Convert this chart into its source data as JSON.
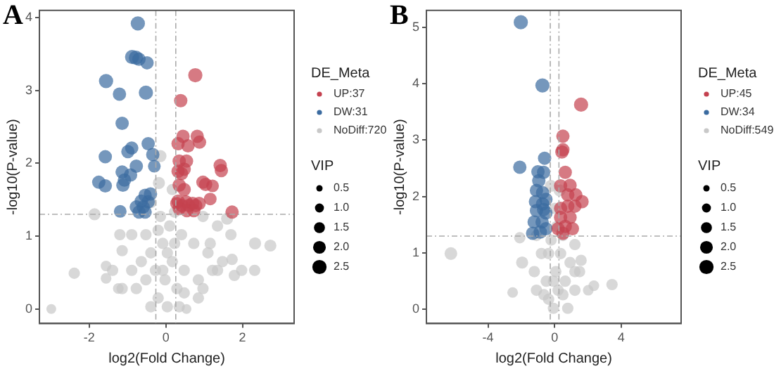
{
  "chart_data": [
    {
      "type": "bubble",
      "title": "A",
      "xlabel": "log2(Fold Change)",
      "ylabel": "-log10(P-value)",
      "legend_title": "DE_Meta",
      "annotations": [
        "VIP"
      ],
      "legend": "right",
      "grid": false,
      "size_legend": [
        0.5,
        {
          "value": 1,
          "label": "1.0"
        },
        1.5,
        {
          "value": 2,
          "label": "2.0"
        },
        2.5
      ],
      "xlim": [
        -3.3,
        3.35
      ],
      "ylim": [
        -0.2,
        4.1
      ],
      "xticks": [
        -2,
        0,
        2
      ],
      "yticks": [
        0,
        1,
        2,
        3,
        4
      ],
      "ref_lines": [
        {
          "axis": "x",
          "value": -0.26,
          "line_style": "dashed",
          "color": "#aaaaaa"
        },
        {
          "axis": "x",
          "value": 0.26,
          "line_style": "dashed",
          "color": "#aaaaaa"
        },
        {
          "axis": "y",
          "value": 1.3,
          "line_style": "dashed",
          "color": "#aaaaaa"
        }
      ],
      "series": [
        {
          "name": "UP:37",
          "color": "#c4414f",
          "x": [
            0.77,
            0.39,
            0.45,
            0.82,
            0.88,
            0.32,
            0.58,
            0.35,
            0.54,
            1.42,
            1.45,
            0.32,
            0.41,
            0.97,
            1.04,
            0.35,
            1.22,
            0.48,
            1.16,
            0.32,
            0.53,
            0.7,
            0.87,
            0.42,
            0.6,
            0.78,
            0.28,
            0.35,
            1.73,
            0.55,
            0.73,
            0.48
          ],
          "values": [
            3.21,
            2.86,
            2.37,
            2.37,
            2.29,
            2.27,
            2.24,
            2.03,
            2.03,
            1.97,
            1.9,
            1.89,
            1.86,
            1.74,
            1.71,
            1.7,
            1.69,
            1.64,
            1.51,
            1.48,
            1.47,
            1.45,
            1.45,
            1.42,
            1.42,
            1.42,
            1.45,
            1.38,
            1.33,
            1.35,
            1.35,
            1.92
          ],
          "sizes": [
            2.5,
            2.2,
            2.2,
            2.2,
            2.2,
            2.2,
            2.2,
            2.2,
            2.2,
            2.2,
            2.2,
            2.2,
            2.2,
            2.2,
            2.2,
            2.2,
            2.0,
            2.2,
            2.0,
            2.2,
            2.2,
            2.2,
            2.2,
            2.2,
            2.2,
            2.2,
            2.0,
            2.2,
            2.2,
            2.2,
            2.2,
            2.2
          ]
        },
        {
          "name": "DW:31",
          "color": "#3b6ba0",
          "x": [
            -0.73,
            -0.88,
            -0.78,
            -0.7,
            -0.49,
            -1.56,
            -1.21,
            -0.52,
            -1.14,
            -0.46,
            -0.89,
            -0.99,
            -1.58,
            -0.34,
            -0.77,
            -1.14,
            -0.92,
            -1.08,
            -0.3,
            -1.75,
            -1.58,
            -1.12,
            -0.54,
            -0.4,
            -0.64,
            -0.46,
            -0.59,
            -0.54,
            -1.19,
            -0.77,
            -0.7
          ],
          "values": [
            3.92,
            3.46,
            3.45,
            3.43,
            3.38,
            3.13,
            2.95,
            2.97,
            2.55,
            2.27,
            2.21,
            2.16,
            2.09,
            2.12,
            1.96,
            1.88,
            1.84,
            1.77,
            1.96,
            1.74,
            1.69,
            1.7,
            1.56,
            1.58,
            1.48,
            1.47,
            1.4,
            1.33,
            1.34,
            1.4,
            1.33
          ],
          "sizes": [
            2.5,
            2.5,
            2.5,
            2.2,
            2.2,
            2.5,
            2.2,
            2.5,
            2.2,
            2.2,
            2.2,
            2.2,
            2.2,
            2.2,
            2.2,
            2.2,
            2.2,
            2.2,
            2.0,
            2.2,
            2.2,
            2.2,
            2.2,
            2.2,
            2.2,
            2.2,
            2.2,
            2.2,
            2.0,
            2.2,
            2.2
          ]
        },
        {
          "name": "NoDiff:720",
          "color": "#c8c8c8",
          "x": [
            -2.99,
            -2.39,
            -1.86,
            -1.56,
            -1.56,
            -1.2,
            -1.14,
            -1.24,
            -0.89,
            -0.77,
            -0.52,
            -0.39,
            -0.27,
            -0.2,
            -0.14,
            -0.18,
            -0.14,
            -0.08,
            -0.02,
            0.04,
            0.1,
            0.17,
            0.23,
            0.29,
            0.41,
            0.48,
            0.54,
            0.73,
            0.85,
            0.97,
            1.1,
            1.22,
            1.35,
            1.6,
            1.16,
            1.48,
            1.73,
            1.98,
            2.32,
            2.33,
            2.73,
            1.35,
            0.85,
            -0.39,
            -0.64,
            -0.89,
            -1.39,
            0.17,
            -0.39,
            0.48,
            -0.08,
            0.04,
            -0.2,
            0.23,
            -0.52,
            0.35,
            0.97,
            -1.14,
            1.7,
            1.79
          ],
          "values": [
            0,
            0.49,
            1.3,
            0.59,
            0.42,
            1.02,
            0.8,
            0.28,
            0.53,
            0.28,
            1.02,
            0.77,
            0.53,
            0.15,
            2.1,
            1.73,
            1.27,
            0.9,
            0.4,
            0.03,
            1.14,
            0.65,
            1.33,
            0.28,
            1.02,
            0.53,
            0,
            0.9,
            0.4,
            1.27,
            0.77,
            0.53,
            1.14,
            1.24,
            0.9,
            0.65,
            0.68,
            0.53,
            0.53,
            0.9,
            0.87,
            0.53,
            0.15,
            0.03,
            0.65,
            1.02,
            0.53,
            1.64,
            1.46,
            0.22,
            0.53,
            0.77,
            1.08,
            0.9,
            0.4,
            0.03,
            0.28,
            0.28,
            1.02,
            0.46
          ],
          "sizes": [
            1.2,
            1.6,
            1.8,
            1.4,
            1.4,
            1.6,
            1.6,
            1.4,
            1.6,
            1.6,
            1.6,
            1.6,
            1.6,
            1.6,
            1.8,
            1.8,
            1.6,
            1.6,
            1.6,
            1.6,
            1.6,
            1.6,
            1.6,
            1.6,
            1.6,
            1.6,
            1.2,
            1.6,
            1.6,
            1.6,
            1.6,
            1.6,
            1.6,
            1.8,
            1.6,
            1.6,
            1.6,
            1.6,
            1.6,
            1.8,
            1.8,
            1.6,
            1.6,
            1.6,
            1.6,
            1.6,
            1.6,
            1.6,
            1.6,
            1.6,
            1.6,
            1.6,
            1.6,
            1.6,
            1.6,
            1.6,
            1.6,
            1.6,
            1.6,
            1.6
          ]
        }
      ]
    },
    {
      "type": "bubble",
      "title": "B",
      "xlabel": "log2(Fold Change)",
      "ylabel": "-log10(P-value)",
      "legend_title": "DE_Meta",
      "annotations": [
        "VIP"
      ],
      "legend": "right",
      "grid": false,
      "size_legend": [
        0.5,
        {
          "value": 1,
          "label": "1.0"
        },
        1.5,
        {
          "value": 2,
          "label": "2.0"
        },
        2.5
      ],
      "xlim": [
        -7.7,
        7.6
      ],
      "ylim": [
        -0.25,
        5.3
      ],
      "xticks": [
        -4,
        0,
        4
      ],
      "yticks": [
        0,
        1,
        2,
        3,
        4,
        5
      ],
      "ref_lines": [
        {
          "axis": "x",
          "value": -0.26,
          "line_style": "dashed",
          "color": "#aaaaaa"
        },
        {
          "axis": "x",
          "value": 0.26,
          "line_style": "dashed",
          "color": "#aaaaaa"
        },
        {
          "axis": "y",
          "value": 1.3,
          "line_style": "dashed",
          "color": "#aaaaaa"
        }
      ],
      "series": [
        {
          "name": "UP:45",
          "color": "#c4414f",
          "x": [
            1.59,
            0.5,
            0.5,
            0.44,
            0.64,
            0.93,
            0.36,
            1.65,
            1.22,
            0.79,
            0.36,
            0.93,
            0.36,
            0.64,
            0.21,
            1.07,
            0.5,
            0.79,
            1.27
          ],
          "values": [
            3.63,
            3.07,
            2.83,
            2.79,
            2.43,
            2.2,
            2.19,
            1.91,
            1.83,
            1.83,
            1.79,
            1.63,
            1.63,
            1.47,
            1.43,
            1.43,
            1.35,
            2.03,
            2.03
          ],
          "sizes": [
            2.5,
            2.2,
            2.2,
            2.2,
            2.2,
            2.2,
            2.2,
            2.2,
            2.2,
            2.2,
            2.2,
            2.2,
            2.2,
            2.2,
            2.2,
            2.2,
            2.2,
            2.2,
            2.2
          ]
        },
        {
          "name": "DW:34",
          "color": "#3b6ba0",
          "x": [
            -2.03,
            -0.73,
            -2.09,
            -0.6,
            -1.0,
            -0.66,
            -1.09,
            -0.72,
            -1.15,
            -0.72,
            -1.09,
            -0.66,
            -1.23,
            -0.75,
            -1.32,
            -0.86,
            -0.52,
            -0.52,
            -0.52,
            -0.95
          ],
          "values": [
            5.09,
            3.97,
            2.52,
            2.68,
            2.44,
            2.43,
            2.11,
            2.07,
            1.91,
            1.87,
            1.75,
            1.77,
            1.55,
            1.55,
            1.35,
            1.37,
            1.43,
            1.71,
            1.95,
            2.28
          ],
          "sizes": [
            2.5,
            2.5,
            2.2,
            2.2,
            2.2,
            2.2,
            2.2,
            2.2,
            2.2,
            2.2,
            2.2,
            2.2,
            2.2,
            2.2,
            2.2,
            2.2,
            2.2,
            2.2,
            2.2,
            2.2
          ]
        },
        {
          "name": "NoDiff:549",
          "color": "#c8c8c8",
          "x": [
            -6.23,
            -2.09,
            -1.95,
            -2.52,
            -1.22,
            -1.09,
            -0.79,
            -0.5,
            -0.36,
            -0.21,
            -0.07,
            0.07,
            0.21,
            0.36,
            0.5,
            0.64,
            0.79,
            0.93,
            1.22,
            1.5,
            1.59,
            1.22,
            2.02,
            2.36,
            3.45,
            0.3,
            -0.22,
            -0.64,
            -0.36,
            0.13,
            0.01,
            -0.07,
            0.5,
            -1.09,
            1.22
          ],
          "values": [
            0.99,
            1.27,
            0.83,
            0.3,
            0.67,
            0.34,
            0.99,
            0.5,
            0.18,
            1.23,
            0.02,
            0.67,
            0.34,
            0.99,
            1.31,
            0.5,
            0.02,
            0.83,
            0.34,
            0.67,
            0.87,
            1.15,
            0.34,
            0.42,
            0.44,
            2.11,
            2.19,
            0.26,
            0.99,
            1.47,
            1.79,
            0.5,
            0.26,
            1.31,
            0.67
          ],
          "sizes": [
            2.0,
            1.6,
            1.8,
            1.4,
            1.6,
            1.6,
            1.6,
            1.6,
            1.6,
            1.6,
            1.6,
            1.6,
            1.6,
            1.6,
            1.6,
            1.6,
            1.6,
            1.6,
            1.6,
            1.6,
            1.6,
            1.6,
            1.4,
            1.4,
            1.6,
            1.8,
            1.8,
            1.6,
            1.6,
            1.6,
            1.6,
            1.6,
            1.6,
            1.6,
            1.6
          ]
        }
      ]
    }
  ]
}
